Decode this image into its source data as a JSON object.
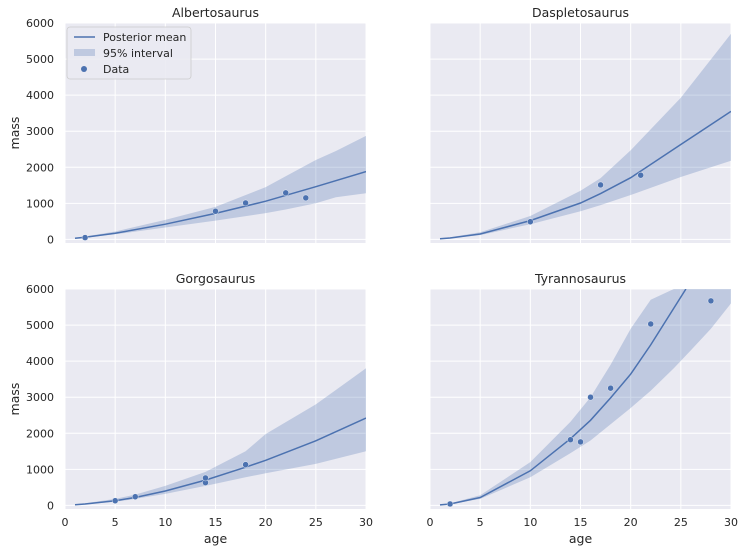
{
  "chart_data": [
    {
      "type": "line",
      "title": "Albertosaurus",
      "xlabel": "",
      "ylabel": "mass",
      "xlim": [
        0,
        30
      ],
      "ylim": [
        -100,
        6000
      ],
      "xticks": [
        "0",
        "5",
        "10",
        "15",
        "20",
        "25",
        "30"
      ],
      "yticks": [
        "0",
        "1000",
        "2000",
        "3000",
        "4000",
        "5000",
        "6000"
      ],
      "show_xticklabels": false,
      "show_yticklabels": true,
      "grid": true,
      "legend": {
        "placement": "top-left",
        "entries": [
          "Posterior mean",
          "95% interval",
          "Data"
        ]
      },
      "mean": {
        "x": [
          1,
          2,
          5,
          10,
          15,
          20,
          25,
          30
        ],
        "y": [
          30,
          60,
          170,
          420,
          720,
          1060,
          1460,
          1880
        ]
      },
      "interval": {
        "x": [
          1,
          2,
          5,
          10,
          15,
          20,
          22,
          25,
          27,
          30
        ],
        "lower": [
          20,
          45,
          140,
          330,
          520,
          730,
          830,
          1000,
          1170,
          1280
        ],
        "upper": [
          40,
          80,
          220,
          540,
          900,
          1450,
          1750,
          2200,
          2450,
          2870
        ]
      },
      "data": {
        "x": [
          2,
          15,
          18,
          22,
          24
        ],
        "y": [
          50,
          780,
          1010,
          1290,
          1150
        ]
      }
    },
    {
      "type": "line",
      "title": "Daspletosaurus",
      "xlabel": "",
      "ylabel": "",
      "xlim": [
        0,
        30
      ],
      "ylim": [
        -100,
        6000
      ],
      "xticks": [
        "0",
        "5",
        "10",
        "15",
        "20",
        "25",
        "30"
      ],
      "yticks": [
        "0",
        "1000",
        "2000",
        "3000",
        "4000",
        "5000",
        "6000"
      ],
      "show_xticklabels": false,
      "show_yticklabels": false,
      "grid": true,
      "mean": {
        "x": [
          1,
          2,
          5,
          10,
          15,
          17,
          20,
          25,
          30
        ],
        "y": [
          20,
          40,
          150,
          520,
          1010,
          1270,
          1710,
          2630,
          3550
        ]
      },
      "interval": {
        "x": [
          1,
          2,
          5,
          10,
          15,
          17,
          20,
          25,
          30
        ],
        "lower": [
          15,
          30,
          120,
          420,
          780,
          950,
          1230,
          1730,
          2180
        ],
        "upper": [
          30,
          60,
          200,
          650,
          1350,
          1700,
          2470,
          3930,
          5700
        ]
      },
      "data": {
        "x": [
          10,
          17,
          21
        ],
        "y": [
          490,
          1510,
          1780
        ]
      }
    },
    {
      "type": "line",
      "title": "Gorgosaurus",
      "xlabel": "",
      "ylabel": "mass",
      "xlim": [
        0,
        30
      ],
      "ylim": [
        -100,
        6000
      ],
      "xticks": [
        "0",
        "5",
        "10",
        "15",
        "20",
        "25",
        "30"
      ],
      "yticks": [
        "0",
        "1000",
        "2000",
        "3000",
        "4000",
        "5000",
        "6000"
      ],
      "show_xticklabels": true,
      "show_yticklabels": true,
      "grid": true,
      "mean": {
        "x": [
          1,
          2,
          5,
          7,
          10,
          14,
          18,
          20,
          25,
          30
        ],
        "y": [
          20,
          40,
          130,
          220,
          400,
          700,
          1060,
          1250,
          1790,
          2420
        ]
      },
      "interval": {
        "x": [
          1,
          2,
          5,
          7,
          10,
          14,
          18,
          20,
          25,
          30
        ],
        "lower": [
          15,
          30,
          100,
          180,
          320,
          540,
          780,
          890,
          1150,
          1500
        ],
        "upper": [
          30,
          60,
          180,
          300,
          540,
          930,
          1500,
          1980,
          2800,
          3800
        ]
      },
      "data": {
        "x": [
          5,
          7,
          14,
          14,
          18
        ],
        "y": [
          130,
          240,
          630,
          760,
          1130
        ]
      }
    },
    {
      "type": "line",
      "title": "Tyrannosaurus",
      "xlabel": "age",
      "ylabel": "",
      "xlim": [
        0,
        30
      ],
      "ylim": [
        -100,
        6000
      ],
      "xticks": [
        "0",
        "5",
        "10",
        "15",
        "20",
        "25",
        "30"
      ],
      "yticks": [
        "0",
        "1000",
        "2000",
        "3000",
        "4000",
        "5000",
        "6000"
      ],
      "show_xticklabels": true,
      "show_yticklabels": false,
      "grid": true,
      "mean": {
        "x": [
          1,
          2,
          5,
          10,
          14,
          16,
          18,
          20,
          22,
          25.5
        ],
        "y": [
          15,
          40,
          220,
          960,
          1850,
          2360,
          2980,
          3640,
          4450,
          6000
        ]
      },
      "interval": {
        "x": [
          1,
          2,
          5,
          10,
          14,
          16,
          18,
          20,
          22,
          24.3,
          26,
          28,
          30
        ],
        "lower": [
          10,
          30,
          180,
          780,
          1450,
          1800,
          2250,
          2700,
          3180,
          3800,
          4300,
          4900,
          5600
        ],
        "upper": [
          20,
          55,
          280,
          1200,
          2320,
          3000,
          3900,
          4900,
          5700,
          6000,
          6000,
          6000,
          6000
        ]
      },
      "data": {
        "x": [
          2,
          14,
          15,
          16,
          18,
          22,
          28
        ],
        "y": [
          40,
          1820,
          1760,
          3000,
          3250,
          5030,
          5670
        ]
      }
    }
  ]
}
